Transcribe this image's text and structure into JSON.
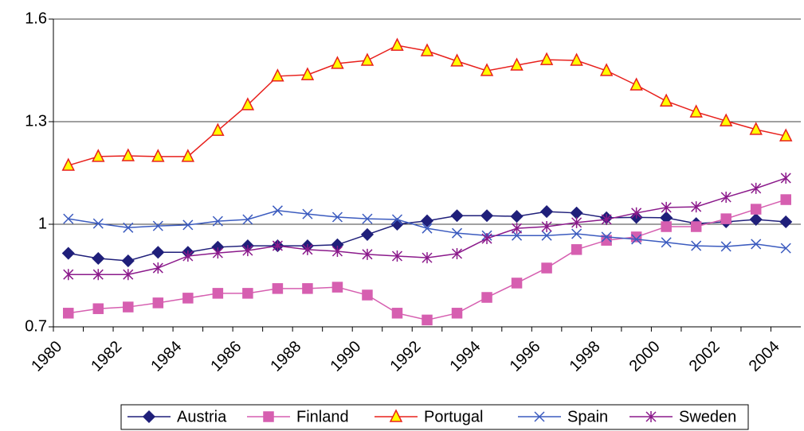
{
  "chart_data": {
    "type": "line",
    "categories": [
      "1980",
      null,
      "1982",
      null,
      "1984",
      null,
      "1986",
      null,
      "1988",
      null,
      "1990",
      null,
      "1992",
      null,
      "1994",
      null,
      "1996",
      null,
      "1998",
      null,
      "2000",
      null,
      "2002",
      null,
      "2004"
    ],
    "ylim": [
      0.7,
      1.6
    ],
    "yticks": [
      0.7,
      1,
      1.3,
      1.6
    ],
    "grid": true,
    "legend": "bottom",
    "series": [
      {
        "name": "Austria",
        "color": "#1f1f7a",
        "marker": "diamond",
        "marker_fill": "#1f1f7a",
        "values": [
          0.915,
          0.9,
          0.893,
          0.918,
          0.918,
          0.933,
          0.937,
          0.937,
          0.937,
          0.94,
          0.97,
          1.0,
          1.01,
          1.025,
          1.025,
          1.023,
          1.037,
          1.033,
          1.019,
          1.02,
          1.019,
          1.002,
          1.007,
          1.014,
          1.007
        ]
      },
      {
        "name": "Finland",
        "color": "#d65fb0",
        "marker": "square",
        "marker_fill": "#d65fb0",
        "values": [
          0.74,
          0.753,
          0.758,
          0.77,
          0.784,
          0.798,
          0.798,
          0.812,
          0.812,
          0.816,
          0.793,
          0.74,
          0.72,
          0.74,
          0.786,
          0.828,
          0.872,
          0.926,
          0.953,
          0.963,
          0.993,
          0.993,
          1.016,
          1.044,
          1.072
        ]
      },
      {
        "name": "Portugal",
        "color": "#e8201c",
        "marker": "triangle",
        "marker_fill": "#ffff00",
        "values": [
          1.172,
          1.198,
          1.2,
          1.198,
          1.198,
          1.274,
          1.349,
          1.433,
          1.437,
          1.47,
          1.479,
          1.523,
          1.507,
          1.477,
          1.449,
          1.465,
          1.481,
          1.479,
          1.449,
          1.407,
          1.36,
          1.328,
          1.302,
          1.277,
          1.258
        ]
      },
      {
        "name": "Spain",
        "color": "#3b5bbf",
        "marker": "x",
        "marker_fill": "none",
        "values": [
          1.016,
          1.002,
          0.99,
          0.995,
          0.998,
          1.009,
          1.014,
          1.04,
          1.03,
          1.021,
          1.016,
          1.014,
          0.988,
          0.974,
          0.967,
          0.967,
          0.967,
          0.972,
          0.963,
          0.956,
          0.947,
          0.937,
          0.935,
          0.942,
          0.93
        ]
      },
      {
        "name": "Sweden",
        "color": "#8b1a8b",
        "marker": "star",
        "marker_fill": "none",
        "values": [
          0.853,
          0.853,
          0.853,
          0.872,
          0.907,
          0.916,
          0.923,
          0.937,
          0.926,
          0.921,
          0.912,
          0.907,
          0.902,
          0.914,
          0.958,
          0.988,
          0.993,
          1.005,
          1.014,
          1.033,
          1.049,
          1.051,
          1.079,
          1.105,
          1.135
        ]
      }
    ]
  }
}
